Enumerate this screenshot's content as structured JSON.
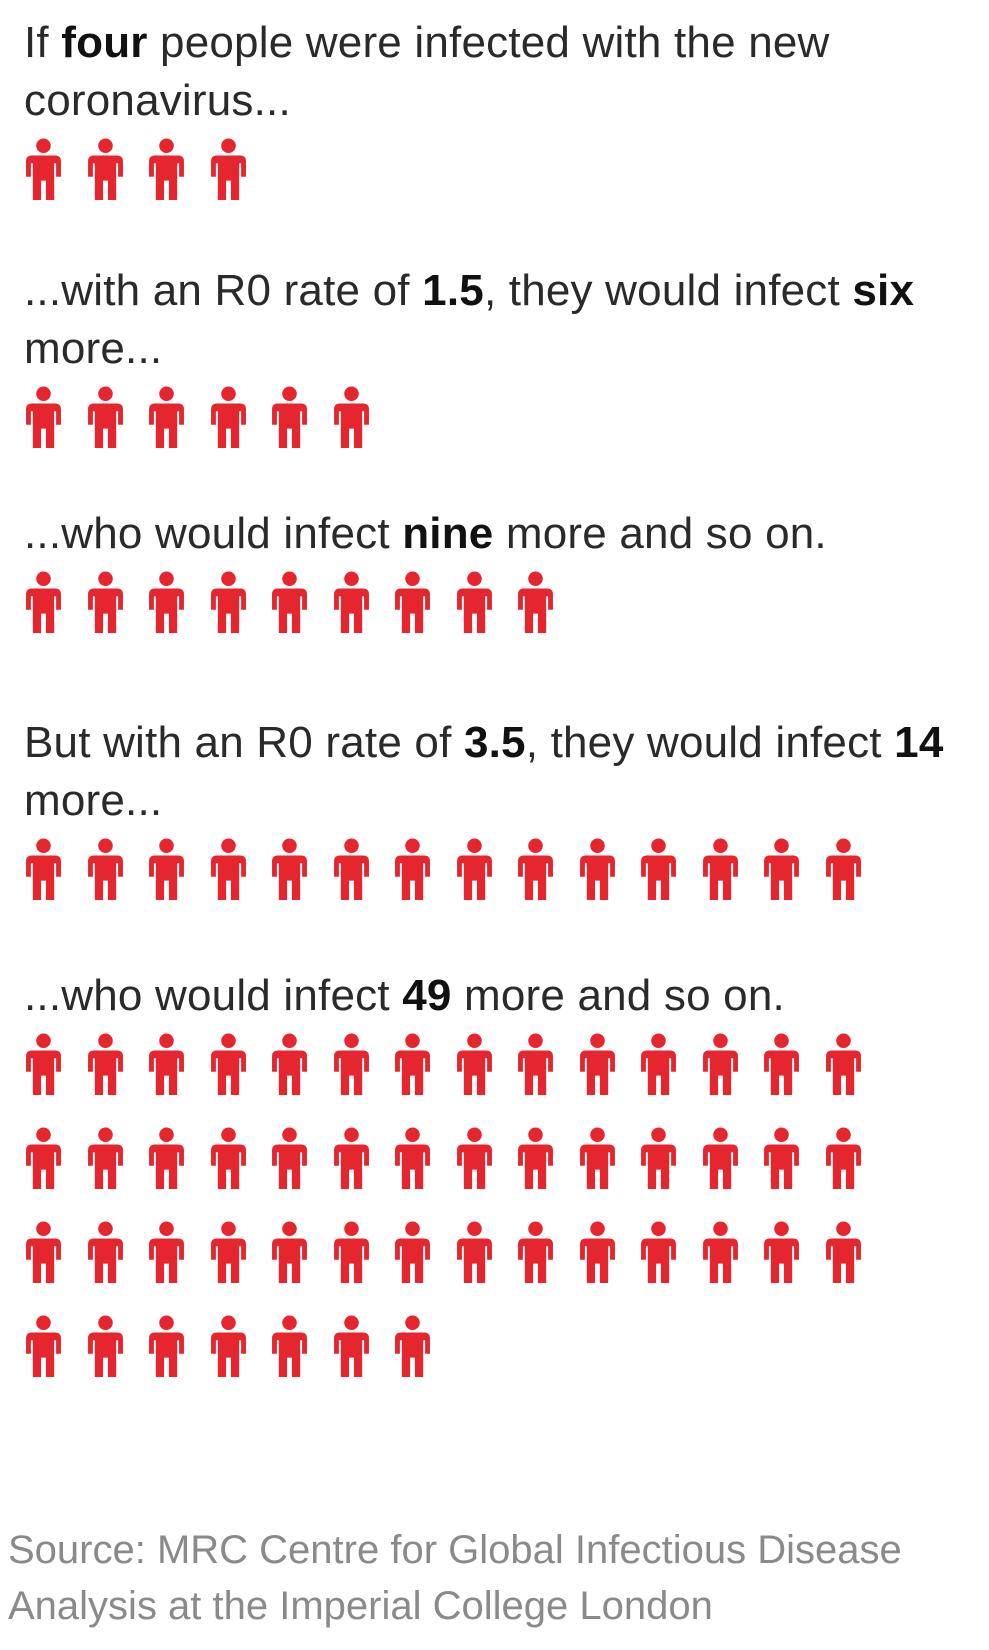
{
  "sections": [
    {
      "text": [
        {
          "t": "If ",
          "b": false
        },
        {
          "t": "four",
          "b": true
        },
        {
          "t": " people were infected with the new coronavirus...",
          "b": false
        }
      ],
      "count": 4
    },
    {
      "text": [
        {
          "t": "...with an R0 rate of ",
          "b": false
        },
        {
          "t": "1.5",
          "b": true
        },
        {
          "t": ", they would infect ",
          "b": false
        },
        {
          "t": "six",
          "b": true
        },
        {
          "t": " more...",
          "b": false
        }
      ],
      "count": 6
    },
    {
      "text": [
        {
          "t": "...who would infect ",
          "b": false
        },
        {
          "t": "nine",
          "b": true
        },
        {
          "t": " more and so on.",
          "b": false
        }
      ],
      "count": 9
    },
    {
      "text": [
        {
          "t": "But with an R0 rate of ",
          "b": false
        },
        {
          "t": "3.5",
          "b": true
        },
        {
          "t": ", they would infect ",
          "b": false
        },
        {
          "t": "14",
          "b": true
        },
        {
          "t": " more...",
          "b": false
        }
      ],
      "count": 14
    },
    {
      "text": [
        {
          "t": "...who would infect ",
          "b": false
        },
        {
          "t": "49",
          "b": true
        },
        {
          "t": " more and so on.",
          "b": false
        }
      ],
      "count": 49
    }
  ],
  "source": "Source: MRC Centre for Global Infectious Disease Analysis at the Imperial College London",
  "icon": "person-icon",
  "colors": {
    "icon": "#e5262e",
    "text": "#2a2a2a",
    "source": "#8a8a8a"
  },
  "chart_data": {
    "type": "pictograph",
    "categories": [
      "If four people were infected with the new coronavirus...",
      "...with an R0 rate of 1.5, they would infect six more...",
      "...who would infect nine more and so on.",
      "But with an R0 rate of 3.5, they would infect 14 more...",
      "...who would infect 49 more and so on."
    ],
    "values": [
      4,
      6,
      9,
      14,
      49
    ]
  }
}
